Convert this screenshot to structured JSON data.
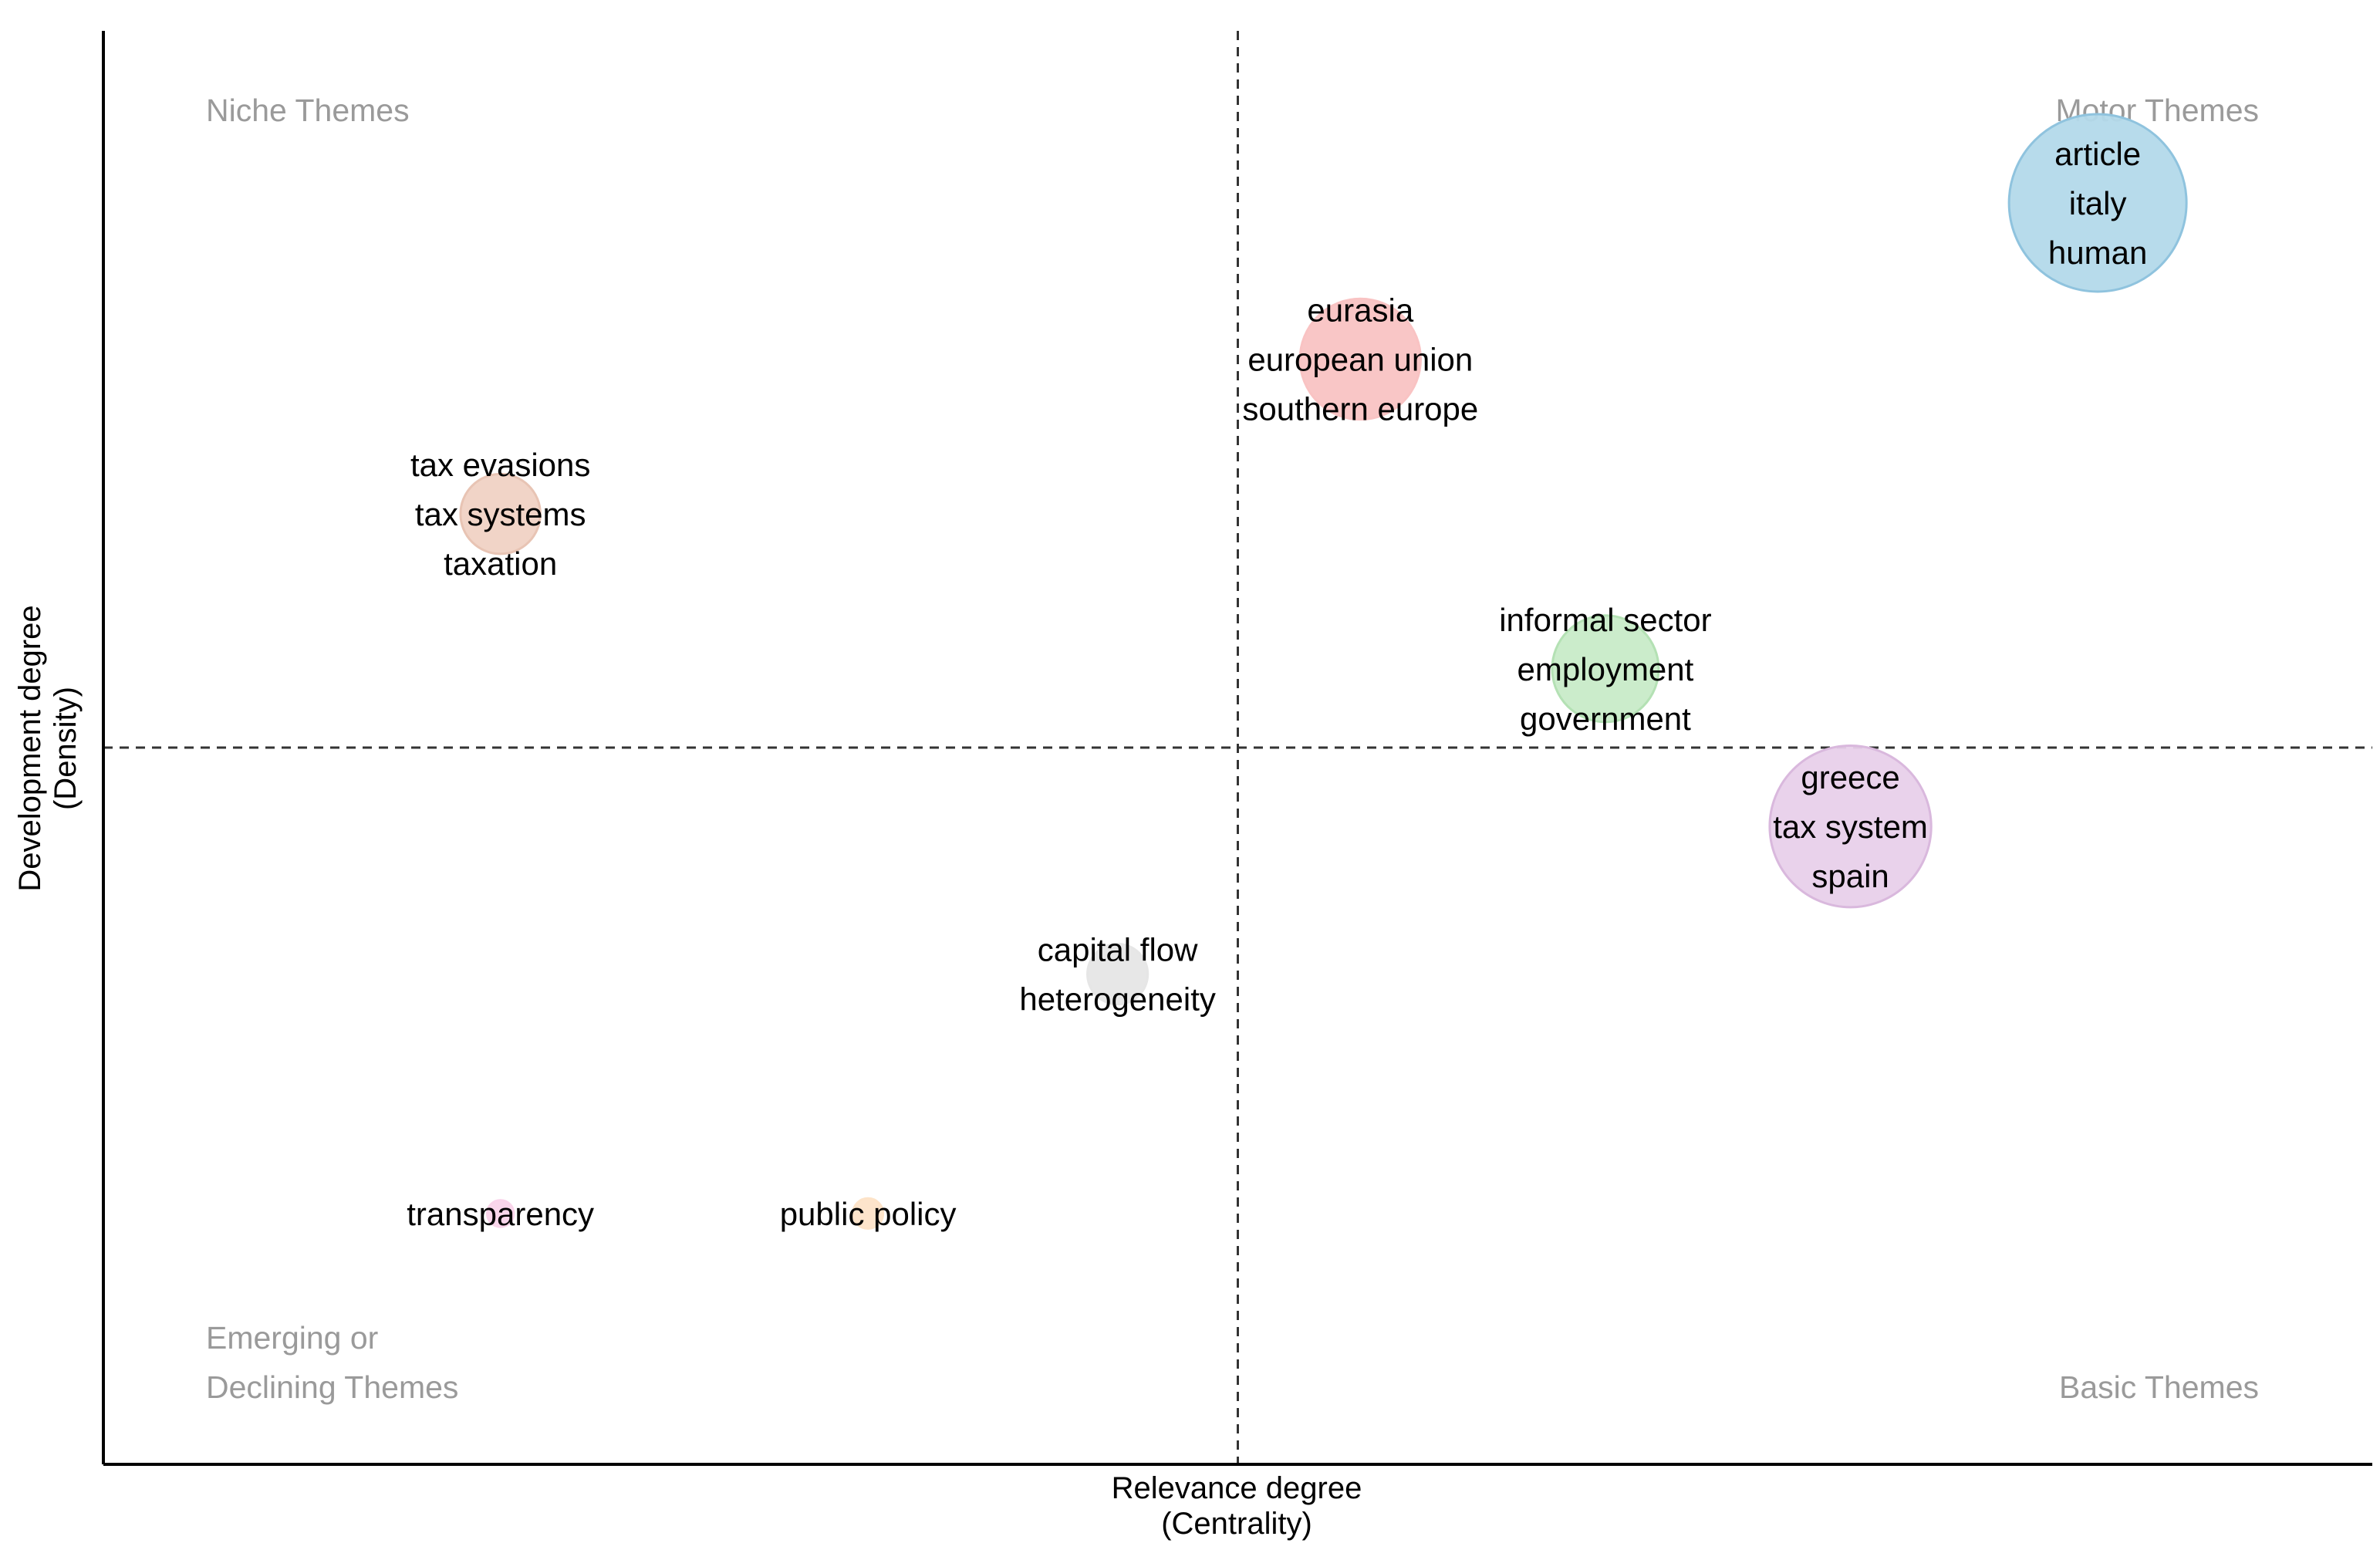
{
  "chart_data": {
    "type": "scatter",
    "title": "",
    "xlabel": [
      "Relevance degree",
      "(Centrality)"
    ],
    "ylabel": [
      "Development degree",
      "(Density)"
    ],
    "xlim": [
      0,
      1
    ],
    "ylim": [
      0,
      1
    ],
    "divider_x": 0.5,
    "divider_y": 0.5,
    "grid": false,
    "quadrants": {
      "top_left": [
        "Niche Themes"
      ],
      "top_right": [
        "Motor Themes"
      ],
      "bottom_left": [
        "Emerging or",
        "Declining Themes"
      ],
      "bottom_right": [
        "Basic Themes"
      ]
    },
    "points": [
      {
        "id": "cluster-article",
        "x": 0.879,
        "y": 0.88,
        "size": 1.0,
        "color": "#b3d9ea",
        "stroke": "#8fc3de",
        "labels": [
          "article",
          "italy",
          "human"
        ]
      },
      {
        "id": "cluster-eurasia",
        "x": 0.554,
        "y": 0.771,
        "size": 0.68,
        "color": "#f9c3c3",
        "stroke": "#f9c3c3",
        "labels": [
          "eurasia",
          "european union",
          "southern europe"
        ]
      },
      {
        "id": "cluster-tax-evasions",
        "x": 0.175,
        "y": 0.663,
        "size": 0.45,
        "color": "#f0d2c4",
        "stroke": "#e8c4b4",
        "labels": [
          "tax evasions",
          "tax systems",
          "taxation"
        ]
      },
      {
        "id": "cluster-informal-sector",
        "x": 0.662,
        "y": 0.555,
        "size": 0.6,
        "color": "#c8ebc8",
        "stroke": "#b4e1b4",
        "labels": [
          "informal sector",
          "employment",
          "government"
        ]
      },
      {
        "id": "cluster-greece",
        "x": 0.77,
        "y": 0.445,
        "size": 0.91,
        "color": "#e8d0ea",
        "stroke": "#d9b8dd",
        "labels": [
          "greece",
          "tax system",
          "spain"
        ]
      },
      {
        "id": "cluster-capital-flow",
        "x": 0.447,
        "y": 0.342,
        "size": 0.34,
        "color": "#e6e6e6",
        "stroke": "#e6e6e6",
        "labels": [
          "capital flow",
          "heterogeneity"
        ]
      },
      {
        "id": "cluster-transparency",
        "x": 0.175,
        "y": 0.175,
        "size": 0.15,
        "color": "#f9d4ea",
        "stroke": "#f9d4ea",
        "labels": [
          "transparency"
        ]
      },
      {
        "id": "cluster-public-policy",
        "x": 0.337,
        "y": 0.175,
        "size": 0.17,
        "color": "#fde3c8",
        "stroke": "#fde3c8",
        "labels": [
          "public policy"
        ]
      }
    ]
  }
}
